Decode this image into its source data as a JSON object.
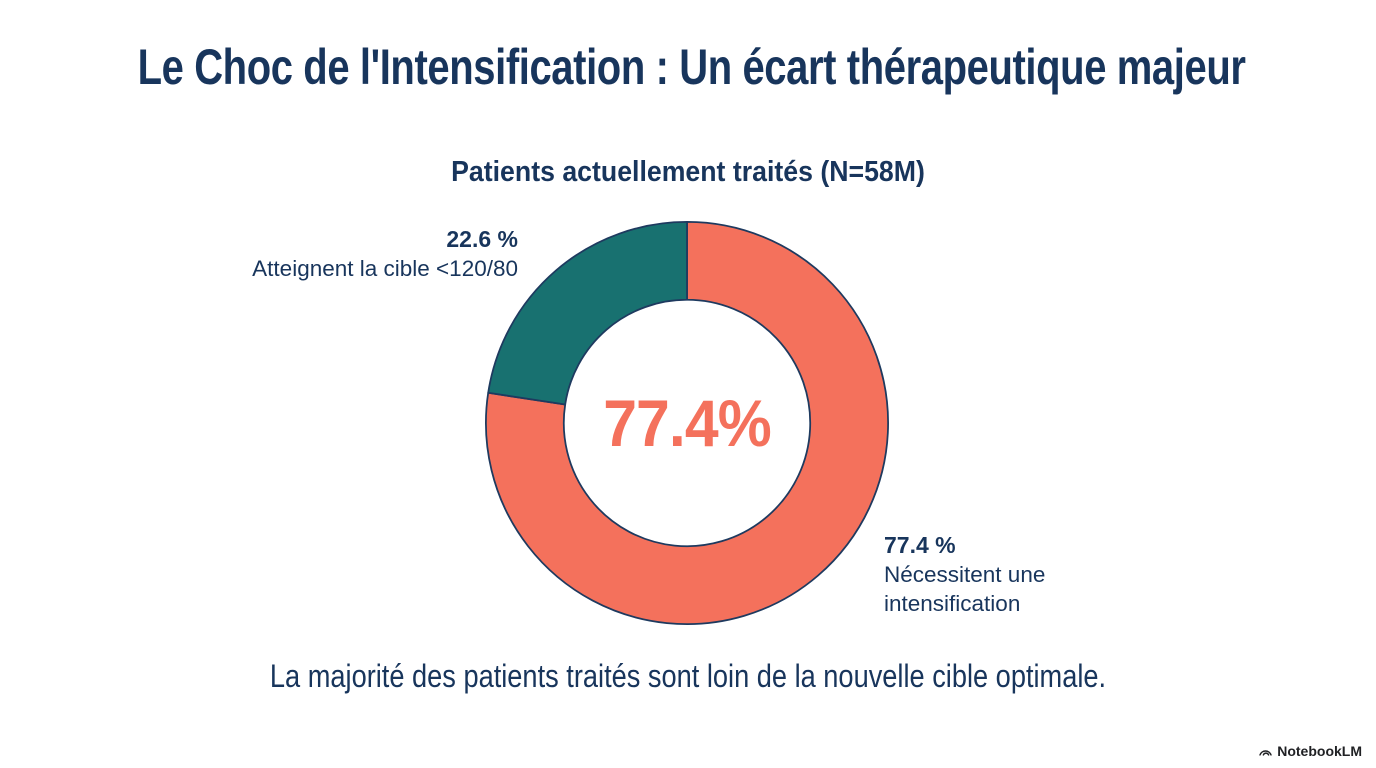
{
  "page": {
    "title": "Le Choc de l'Intensification : Un écart thérapeutique majeur",
    "conclusion": "La majorité des patients traités sont loin de la nouvelle cible optimale.",
    "brand": "NotebookLM"
  },
  "chart_data": {
    "type": "pie",
    "subtype": "donut",
    "title": "Patients actuellement traités (N=58M)",
    "categories": [
      "Nécessitent une intensification",
      "Atteignent la cible <120/80"
    ],
    "values": [
      77.4,
      22.6
    ],
    "colors": [
      "#F4715C",
      "#187170"
    ],
    "start_angle_deg": 0,
    "direction": "clockwise",
    "center_label": "77.4%",
    "legend_position": "outside-labels",
    "annotations": {
      "target": {
        "pct": "22.6 %",
        "label": "Atteignent la cible <120/80"
      },
      "intensify": {
        "pct": "77.4 %",
        "label_line1": "Nécessitent une",
        "label_line2": "intensification"
      }
    }
  },
  "colors": {
    "navy": "#18355C",
    "coral": "#F4715C",
    "teal": "#187170",
    "outline": "#1E3A5F",
    "background": "#FFFFFF",
    "brand_text": "#202124"
  }
}
